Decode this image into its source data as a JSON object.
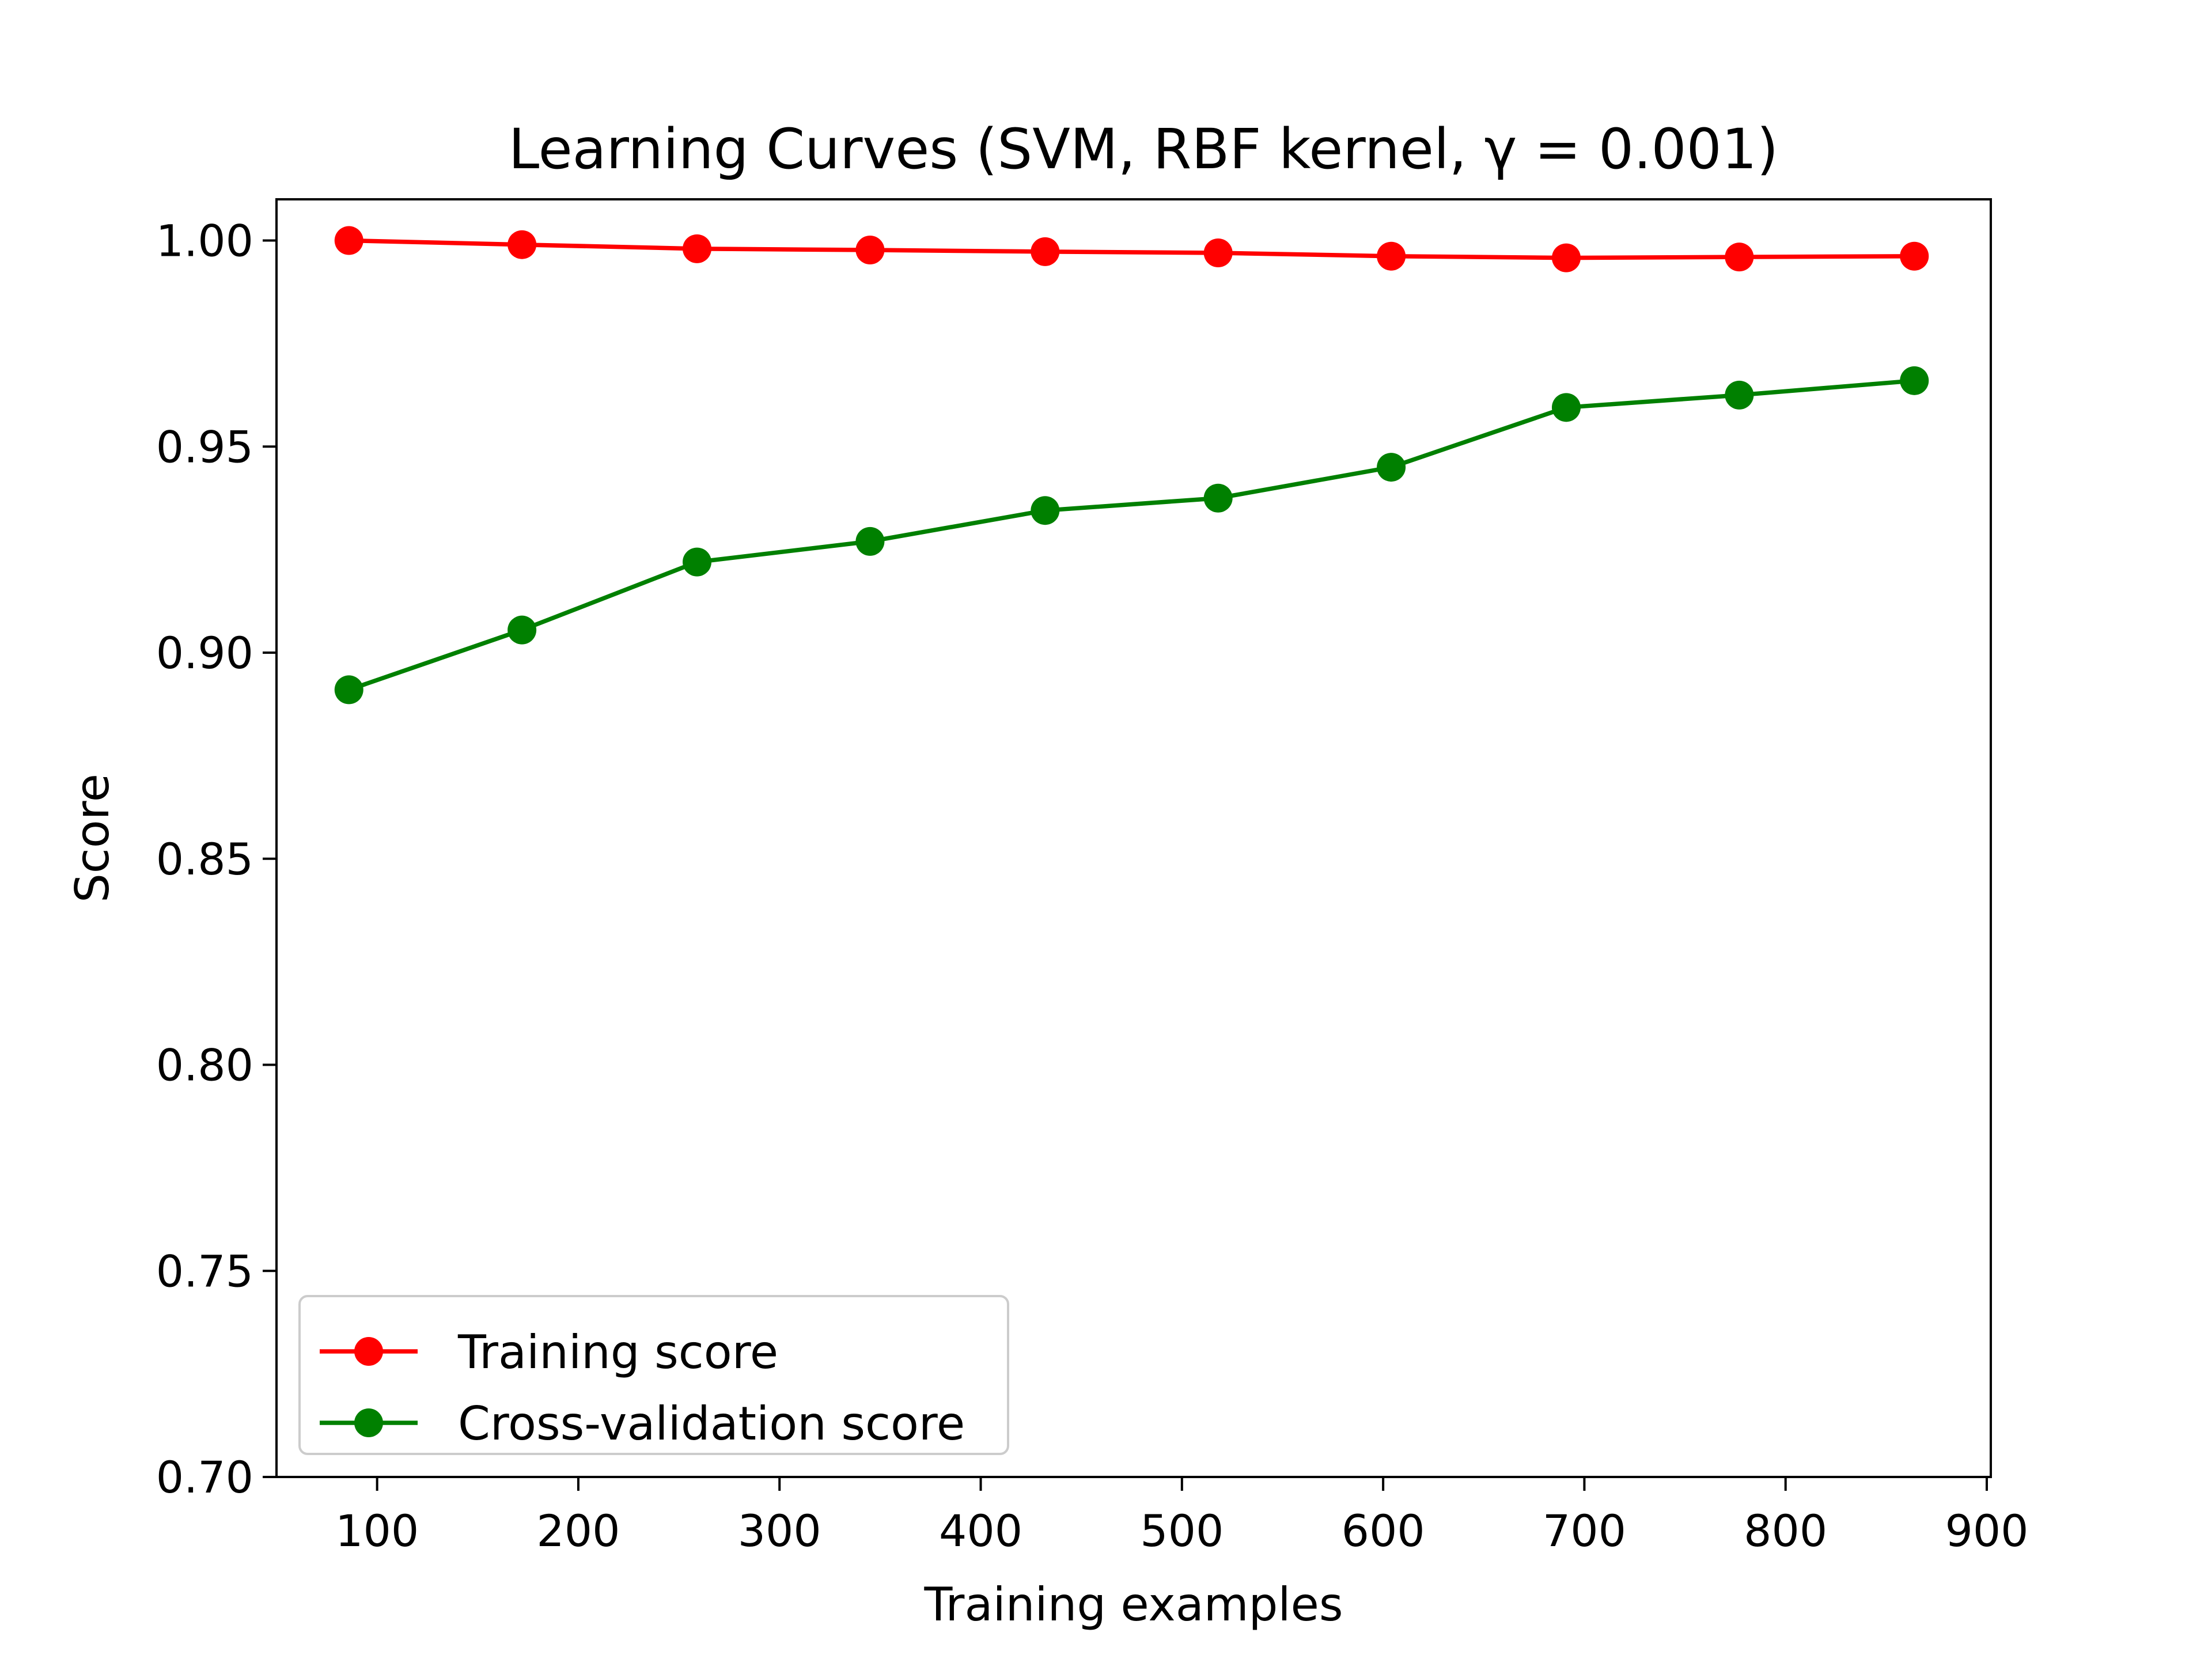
{
  "chart_data": {
    "type": "line",
    "title": "Learning Curves (SVM, RBF kernel, γ = 0.001)",
    "xlabel": "Training examples",
    "ylabel": "Score",
    "xlim": [
      50,
      902
    ],
    "ylim": [
      0.7,
      1.01
    ],
    "x_ticks": [
      100,
      200,
      300,
      400,
      500,
      600,
      700,
      800,
      900
    ],
    "x_tick_labels": [
      "100",
      "200",
      "300",
      "400",
      "500",
      "600",
      "700",
      "800",
      "900"
    ],
    "y_ticks": [
      0.7,
      0.75,
      0.8,
      0.85,
      0.9,
      0.95,
      1.0
    ],
    "y_tick_labels": [
      "0.70",
      "0.75",
      "0.80",
      "0.85",
      "0.90",
      "0.95",
      "1.00"
    ],
    "grid": false,
    "legend_position": "lower-left",
    "x": [
      86,
      172,
      259,
      345,
      432,
      518,
      604,
      691,
      777,
      864
    ],
    "series": [
      {
        "name": "Training score",
        "color": "#ff0000",
        "values": [
          1.0,
          0.999,
          0.998,
          0.9977,
          0.9973,
          0.997,
          0.9962,
          0.9958,
          0.996,
          0.9962
        ]
      },
      {
        "name": "Cross-validation score",
        "color": "#008000",
        "values": [
          0.891,
          0.9055,
          0.922,
          0.927,
          0.9345,
          0.9375,
          0.945,
          0.9595,
          0.9625,
          0.966
        ]
      }
    ]
  }
}
